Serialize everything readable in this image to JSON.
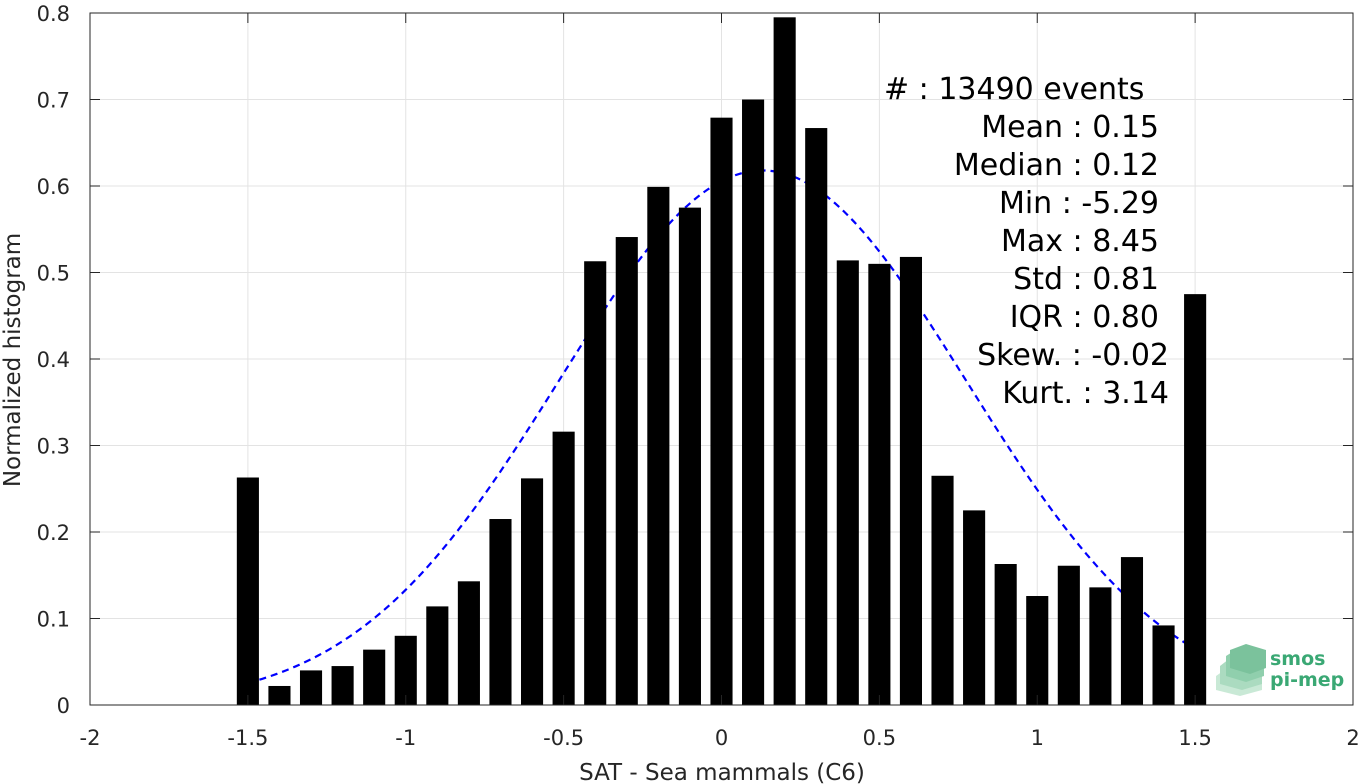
{
  "chart_data": {
    "type": "bar",
    "xlabel": "SAT - Sea mammals (C6)",
    "ylabel": "Normalized histogram",
    "xlim": [
      -2,
      2
    ],
    "ylim": [
      0,
      0.8
    ],
    "xticks": [
      -2,
      -1.5,
      -1,
      -0.5,
      0,
      0.5,
      1,
      1.5,
      2
    ],
    "xtick_labels": [
      "-2",
      "-1.5",
      "-1",
      "-0.5",
      "0",
      "0.5",
      "1",
      "1.5",
      "2"
    ],
    "yticks": [
      0,
      0.1,
      0.2,
      0.3,
      0.4,
      0.5,
      0.6,
      0.7,
      0.8
    ],
    "ytick_labels": [
      "0",
      "0.1",
      "0.2",
      "0.3",
      "0.4",
      "0.5",
      "0.6",
      "0.7",
      "0.8"
    ],
    "grid": true,
    "bar_color": "#000000",
    "fit_color": "#0000ff",
    "bar_width": 0.07,
    "bins": [
      {
        "x": -1.5,
        "y": 0.263
      },
      {
        "x": -1.4,
        "y": 0.022
      },
      {
        "x": -1.3,
        "y": 0.04
      },
      {
        "x": -1.2,
        "y": 0.045
      },
      {
        "x": -1.1,
        "y": 0.064
      },
      {
        "x": -1.0,
        "y": 0.08
      },
      {
        "x": -0.9,
        "y": 0.114
      },
      {
        "x": -0.8,
        "y": 0.143
      },
      {
        "x": -0.7,
        "y": 0.215
      },
      {
        "x": -0.6,
        "y": 0.262
      },
      {
        "x": -0.5,
        "y": 0.316
      },
      {
        "x": -0.4,
        "y": 0.513
      },
      {
        "x": -0.3,
        "y": 0.541
      },
      {
        "x": -0.2,
        "y": 0.599
      },
      {
        "x": -0.1,
        "y": 0.575
      },
      {
        "x": 0.0,
        "y": 0.679
      },
      {
        "x": 0.1,
        "y": 0.7
      },
      {
        "x": 0.2,
        "y": 0.795
      },
      {
        "x": 0.3,
        "y": 0.667
      },
      {
        "x": 0.4,
        "y": 0.514
      },
      {
        "x": 0.5,
        "y": 0.51
      },
      {
        "x": 0.6,
        "y": 0.518
      },
      {
        "x": 0.7,
        "y": 0.265
      },
      {
        "x": 0.8,
        "y": 0.225
      },
      {
        "x": 0.9,
        "y": 0.163
      },
      {
        "x": 1.0,
        "y": 0.126
      },
      {
        "x": 1.1,
        "y": 0.161
      },
      {
        "x": 1.2,
        "y": 0.136
      },
      {
        "x": 1.3,
        "y": 0.171
      },
      {
        "x": 1.4,
        "y": 0.092
      },
      {
        "x": 1.5,
        "y": 0.475
      }
    ],
    "fit": {
      "type": "gaussian",
      "mean": 0.13,
      "std": 0.645,
      "x_range": [
        -1.5,
        1.5
      ],
      "peak": 0.618
    },
    "annotations": [
      "#  : 13490 events",
      "Mean : 0.15",
      "Median : 0.12",
      "Min : -5.29",
      "Max : 8.45",
      "Std : 0.81",
      "IQR : 0.80",
      "Skew. : -0.02",
      "Kurt. : 3.14"
    ]
  },
  "logo": {
    "line1": "smos",
    "line2": "pi-mep",
    "color": "#3aa874"
  }
}
